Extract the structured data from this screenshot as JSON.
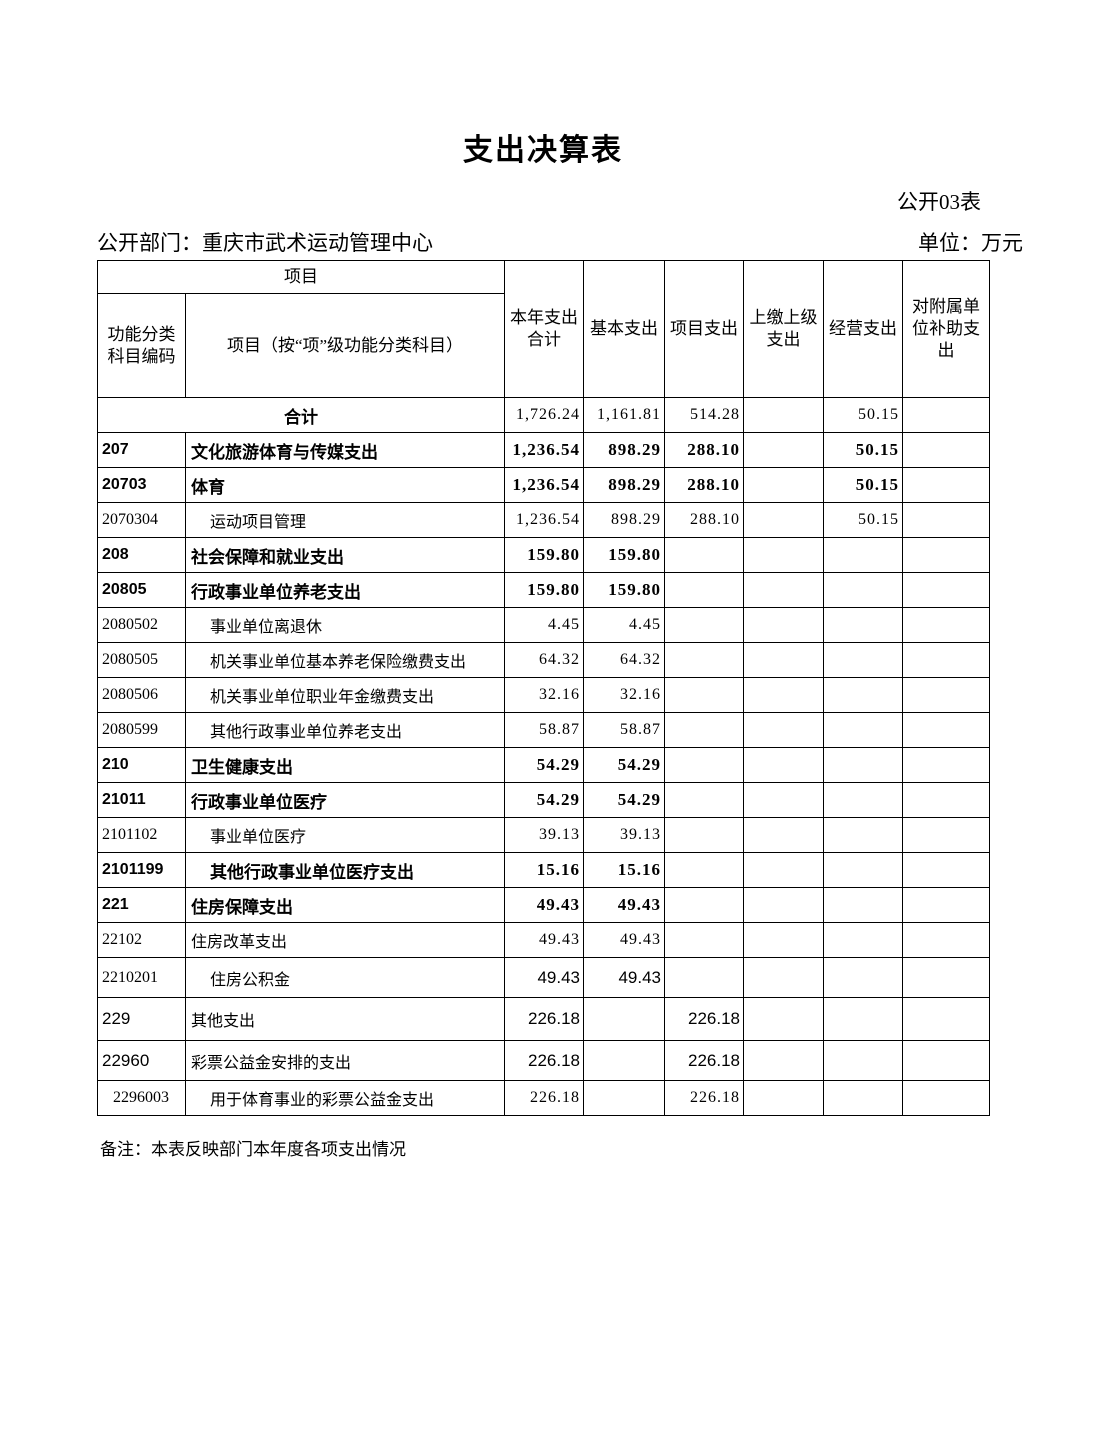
{
  "page": {
    "title": "支出决算表",
    "form_code": "公开03表",
    "department": "公开部门：重庆市武术运动管理中心",
    "unit": "单位：万元",
    "note": "备注：本表反映部门本年度各项支出情况"
  },
  "table": {
    "header": {
      "group": "项目",
      "code_col": "功能分类科目编码",
      "item_col": "项目（按“项”级功能分类科目）",
      "value_cols": [
        "本年支出合计",
        "基本支出",
        "项目支出",
        "上缴上级支出",
        "经营支出",
        "对附属单位补助支出"
      ]
    },
    "rows": [
      {
        "merged": true,
        "name": "合计",
        "vals": [
          "1,726.24",
          "1,161.81",
          "514.28",
          "",
          "50.15",
          ""
        ]
      },
      {
        "code": "207",
        "name": "文化旅游体育与传媒支出",
        "bold": true,
        "indent": 0,
        "vals": [
          "1,236.54",
          "898.29",
          "288.10",
          "",
          "50.15",
          ""
        ]
      },
      {
        "code": "20703",
        "name": "体育",
        "bold": true,
        "indent": 0,
        "vals": [
          "1,236.54",
          "898.29",
          "288.10",
          "",
          "50.15",
          ""
        ]
      },
      {
        "code": "2070304",
        "name": "运动项目管理",
        "indent": 1,
        "vals": [
          "1,236.54",
          "898.29",
          "288.10",
          "",
          "50.15",
          ""
        ]
      },
      {
        "code": "208",
        "name": "社会保障和就业支出",
        "bold": true,
        "indent": 0,
        "vals": [
          "159.80",
          "159.80",
          "",
          "",
          "",
          ""
        ]
      },
      {
        "code": "20805",
        "name": "行政事业单位养老支出",
        "bold": true,
        "indent": 0,
        "vals": [
          "159.80",
          "159.80",
          "",
          "",
          "",
          ""
        ]
      },
      {
        "code": "2080502",
        "name": "事业单位离退休",
        "indent": 1,
        "vals": [
          "4.45",
          "4.45",
          "",
          "",
          "",
          ""
        ]
      },
      {
        "code": "2080505",
        "name": "机关事业单位基本养老保险缴费支出",
        "indent": 1,
        "vals": [
          "64.32",
          "64.32",
          "",
          "",
          "",
          ""
        ]
      },
      {
        "code": "2080506",
        "name": "机关事业单位职业年金缴费支出",
        "indent": 1,
        "vals": [
          "32.16",
          "32.16",
          "",
          "",
          "",
          ""
        ]
      },
      {
        "code": "2080599",
        "name": "其他行政事业单位养老支出",
        "indent": 1,
        "vals": [
          "58.87",
          "58.87",
          "",
          "",
          "",
          ""
        ]
      },
      {
        "code": "210",
        "name": "卫生健康支出",
        "bold": true,
        "indent": 0,
        "vals": [
          "54.29",
          "54.29",
          "",
          "",
          "",
          ""
        ]
      },
      {
        "code": "21011",
        "name": "行政事业单位医疗",
        "bold": true,
        "indent": 0,
        "vals": [
          "54.29",
          "54.29",
          "",
          "",
          "",
          ""
        ]
      },
      {
        "code": "2101102",
        "name": "事业单位医疗",
        "indent": 1,
        "vals": [
          "39.13",
          "39.13",
          "",
          "",
          "",
          ""
        ]
      },
      {
        "code": "2101199",
        "name": "其他行政事业单位医疗支出",
        "bold": true,
        "indent": 1,
        "vals": [
          "15.16",
          "15.16",
          "",
          "",
          "",
          ""
        ]
      },
      {
        "code": "221",
        "name": "住房保障支出",
        "bold": true,
        "indent": 0,
        "vals": [
          "49.43",
          "49.43",
          "",
          "",
          "",
          ""
        ]
      },
      {
        "code": "22102",
        "name": "住房改革支出",
        "indent": 0,
        "vals": [
          "49.43",
          "49.43",
          "",
          "",
          "",
          ""
        ]
      },
      {
        "code": "2210201",
        "name": "住房公积金",
        "indent": 1,
        "sans_values": true,
        "vals": [
          "49.43",
          "49.43",
          "",
          "",
          "",
          ""
        ]
      },
      {
        "code": "229",
        "name": "其他支出",
        "indent": 0,
        "sans_code": true,
        "sans_values": true,
        "vals": [
          "226.18",
          "",
          "226.18",
          "",
          "",
          ""
        ]
      },
      {
        "code": "22960",
        "name": "彩票公益金安排的支出",
        "indent": 0,
        "sans_code": true,
        "sans_values": true,
        "vals": [
          "226.18",
          "",
          "226.18",
          "",
          "",
          ""
        ]
      },
      {
        "code": "2296003",
        "name": "用于体育事业的彩票公益金支出",
        "indent": 1,
        "code_indent": true,
        "vals": [
          "226.18",
          "",
          "226.18",
          "",
          "",
          ""
        ]
      }
    ]
  }
}
